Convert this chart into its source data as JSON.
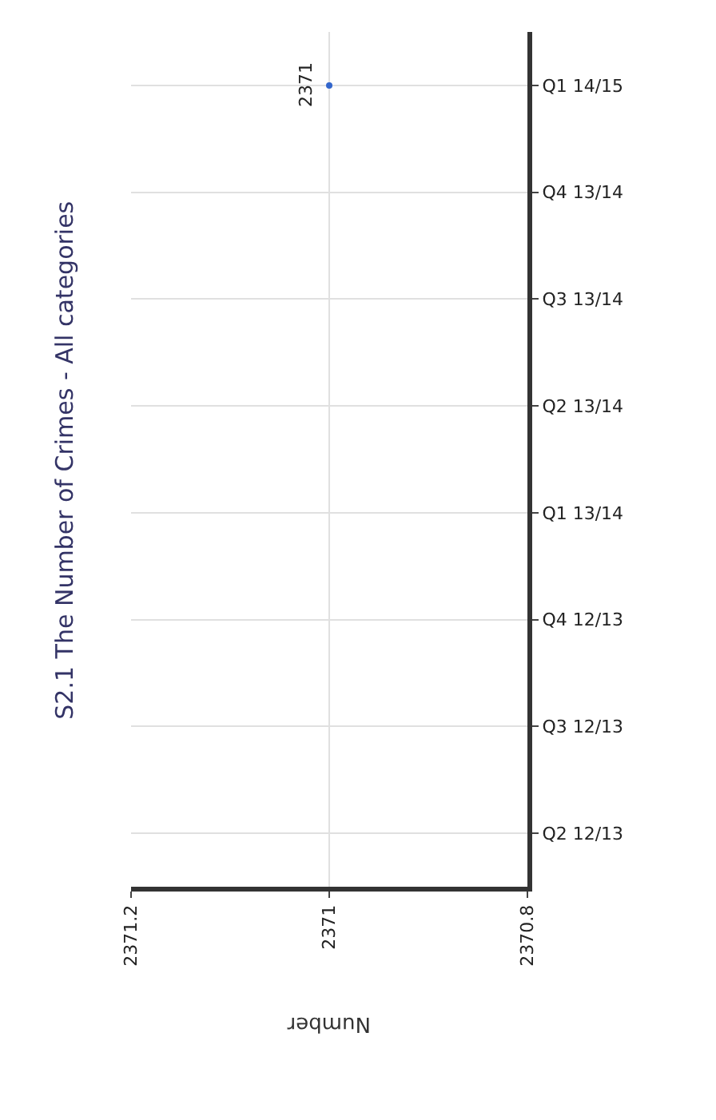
{
  "chart_data": {
    "type": "line",
    "orientation": "horizontal",
    "title": "S2.1 The Number of Crimes - All categories",
    "xlabel": "Number",
    "categories": [
      "Q1 14/15",
      "Q4 13/14",
      "Q3 13/14",
      "Q2 13/14",
      "Q1 13/14",
      "Q4 12/13",
      "Q3 12/13",
      "Q2 12/13"
    ],
    "series": [
      {
        "color": "#3366cc",
        "values": [
          2371,
          null,
          null,
          null,
          null,
          null,
          null,
          null
        ]
      }
    ],
    "xlim": [
      2371.2,
      2370.8
    ],
    "xticks": [
      2371.2,
      2371,
      2370.8
    ],
    "data_labels": true,
    "marker": "circle",
    "grid": true
  }
}
